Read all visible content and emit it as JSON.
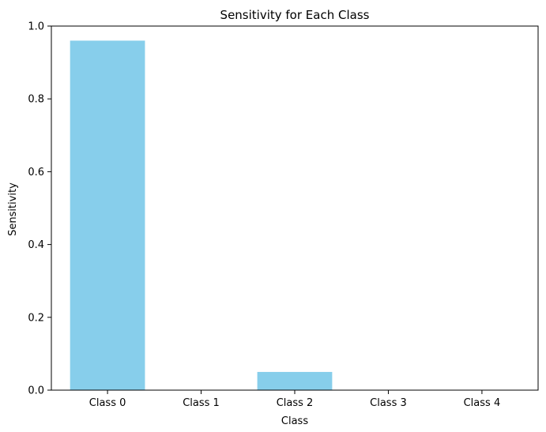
{
  "chart_data": {
    "type": "bar",
    "title": "Sensitivity for Each Class",
    "xlabel": "Class",
    "ylabel": "Sensitivity",
    "categories": [
      "Class 0",
      "Class 1",
      "Class 2",
      "Class 3",
      "Class 4"
    ],
    "values": [
      0.96,
      0.0,
      0.05,
      0.0,
      0.0
    ],
    "ylim": [
      0,
      1.0
    ],
    "yticks": [
      "0.0",
      "0.2",
      "0.4",
      "0.6",
      "0.8",
      "1.0"
    ],
    "ytick_values": [
      0,
      0.2,
      0.4,
      0.6,
      0.8,
      1.0
    ],
    "grid": false,
    "bar_color": "#87ceeb"
  }
}
